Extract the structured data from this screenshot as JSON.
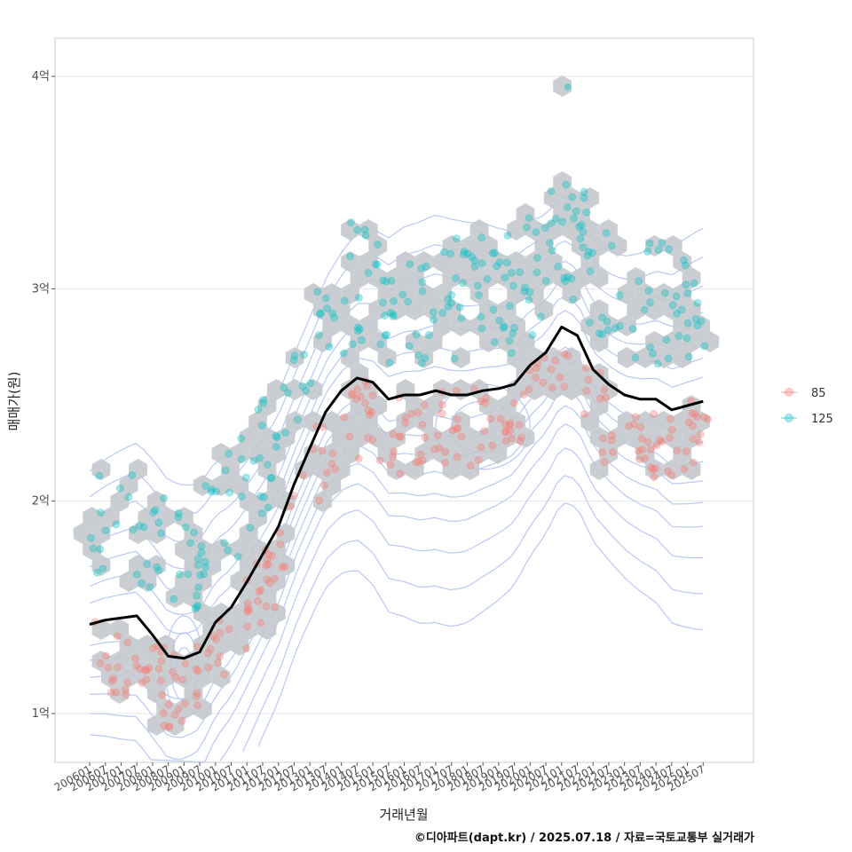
{
  "chart_data": {
    "type": "scatter",
    "xlabel": "거래년월",
    "ylabel": "매매가(원)",
    "x_ticks": [
      "200601",
      "200607",
      "200701",
      "200707",
      "200801",
      "200807",
      "200901",
      "200907",
      "201001",
      "201007",
      "201101",
      "201107",
      "201201",
      "201207",
      "201301",
      "201307",
      "201401",
      "201407",
      "201501",
      "201507",
      "201601",
      "201607",
      "201701",
      "201707",
      "201801",
      "201807",
      "201901",
      "201907",
      "202001",
      "202007",
      "202101",
      "202107",
      "202201",
      "202207",
      "202301",
      "202307",
      "202401",
      "202407",
      "202501",
      "202507"
    ],
    "y_ticks": [
      {
        "value": 1,
        "label": "1억"
      },
      {
        "value": 2,
        "label": "2억"
      },
      {
        "value": 3,
        "label": "3억"
      },
      {
        "value": 4,
        "label": "4억"
      }
    ],
    "ylim": [
      0.77,
      4.18
    ],
    "xlim_index": [
      -2.2,
      42.2
    ],
    "grid": true,
    "legend_position": "right",
    "series": [
      {
        "name": "85",
        "color": "#F8766D"
      },
      {
        "name": "125",
        "color": "#00BFC4"
      }
    ],
    "trend_line": {
      "color": "#000000",
      "x_index": [
        0,
        1,
        2,
        3,
        4,
        5,
        6,
        7,
        8,
        9,
        10,
        11,
        12,
        13,
        14,
        15,
        16,
        17,
        18,
        19,
        20,
        21,
        22,
        23,
        24,
        25,
        26,
        27,
        28,
        29,
        30,
        31,
        32,
        33,
        34,
        35,
        36,
        37,
        38,
        39
      ],
      "values": [
        1.42,
        1.44,
        1.45,
        1.46,
        1.37,
        1.27,
        1.26,
        1.29,
        1.43,
        1.5,
        1.62,
        1.75,
        1.88,
        2.08,
        2.25,
        2.42,
        2.52,
        2.58,
        2.56,
        2.48,
        2.5,
        2.5,
        2.52,
        2.5,
        2.5,
        2.52,
        2.53,
        2.55,
        2.64,
        2.7,
        2.82,
        2.78,
        2.62,
        2.55,
        2.5,
        2.48,
        2.48,
        2.43,
        2.45,
        2.47
      ]
    },
    "hexbins_ok": true,
    "contours_color": "#b9c8f2",
    "hexbin_color": "#c4c9cd"
  },
  "caption": "©디아파트(dapt.kr) / 2025.07.18 / 자료=국토교통부 실거래가"
}
